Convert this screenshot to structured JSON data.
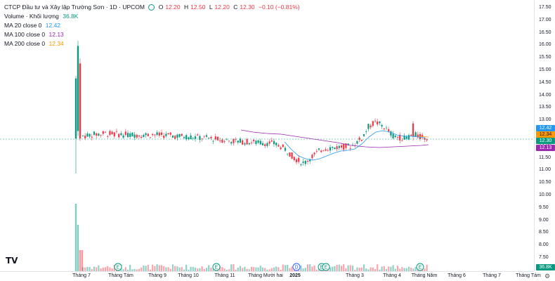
{
  "header": {
    "symbol": "CTCP Đầu tư và Xây lập Trường Sơn · 1D · UPCOM",
    "open_label": "O",
    "open": "12.20",
    "high_label": "H",
    "high": "12.50",
    "low_label": "L",
    "low": "12.20",
    "close_label": "C",
    "close": "12.30",
    "change": "−0.10 (−0.81%)"
  },
  "indicators": [
    {
      "label": "Volume · Khối lượng",
      "value": "36.8K",
      "color": "#089981"
    },
    {
      "label": "MA 20 close 0",
      "value": "12.42",
      "color": "#2196f3"
    },
    {
      "label": "MA 100 close 0",
      "value": "12.13",
      "color": "#9c27b0"
    },
    {
      "label": "MA 200 close 0",
      "value": "12.34",
      "color": "#ff9800"
    }
  ],
  "price_axis": {
    "ticks": [
      "17.50",
      "17.00",
      "16.50",
      "16.00",
      "15.50",
      "15.00",
      "14.50",
      "14.00",
      "13.50",
      "13.00",
      "12.50",
      "12.00",
      "11.50",
      "11.00",
      "10.50",
      "10.00",
      "9.50",
      "9.00",
      "8.50",
      "8.00",
      "7.50"
    ],
    "tags": [
      {
        "text": "12.42",
        "color": "#2196f3",
        "price": 12.42
      },
      {
        "text": "12.34",
        "color": "#ff9800",
        "price": 12.34
      },
      {
        "text": "12.30",
        "color": "#089981",
        "price": 12.3
      },
      {
        "text": "12.13",
        "color": "#9c27b0",
        "price": 12.13
      }
    ],
    "volume_tag": {
      "text": "36.8K",
      "color": "#089981"
    }
  },
  "time_axis": [
    {
      "text": "Tháng 7",
      "bold": false
    },
    {
      "text": "Tháng Tám",
      "bold": false
    },
    {
      "text": "Tháng 9",
      "bold": false
    },
    {
      "text": "Tháng 10",
      "bold": false
    },
    {
      "text": "Tháng 11",
      "bold": false
    },
    {
      "text": "Tháng Mười hai",
      "bold": false
    },
    {
      "text": "2025",
      "bold": true
    },
    {
      "text": "Tháng 3",
      "bold": false
    },
    {
      "text": "Tháng 4",
      "bold": false
    },
    {
      "text": "Tháng Năm",
      "bold": false
    },
    {
      "text": "Tháng 6",
      "bold": false
    },
    {
      "text": "Tháng 7",
      "bold": false
    },
    {
      "text": "Tháng Tám",
      "bold": false
    }
  ],
  "markers": [
    {
      "letter": "E",
      "color": "#089981"
    },
    {
      "letter": "E",
      "color": "#089981"
    },
    {
      "letter": "D",
      "color": "#2962ff"
    },
    {
      "letter": "E",
      "color": "#089981"
    },
    {
      "letter": "E",
      "color": "#089981"
    },
    {
      "letter": "E",
      "color": "#089981"
    }
  ],
  "logo": "TV",
  "colors": {
    "up": "#089981",
    "down": "#f23645",
    "ma20": "#2196f3",
    "ma100": "#9c27b0",
    "ma200": "#ff9800",
    "last_price_line": "#089981"
  },
  "icons": {
    "settings": "gear-icon",
    "logo": "tradingview-logo-icon"
  }
}
